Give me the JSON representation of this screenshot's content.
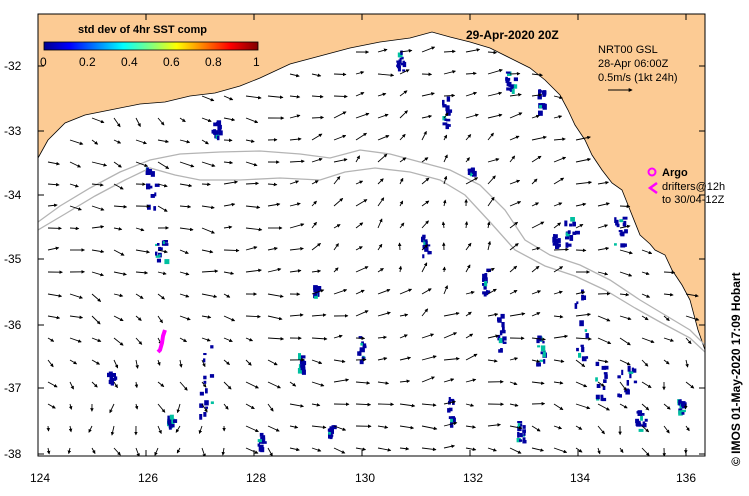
{
  "map": {
    "title_date": "29-Apr-2020 20Z",
    "colorbar": {
      "title": "std dev of 4hr SST comp",
      "ticks": [
        "0",
        "0.2",
        "0.4",
        "0.6",
        "0.8",
        "1"
      ]
    },
    "current_info": {
      "line1": "NRT00 GSL",
      "line2": "28-Apr 06:00Z",
      "line3": "0.5m/s (1kt 24h)"
    },
    "legend": {
      "argo_label": "Argo",
      "drifters_line1": "drifters@12h",
      "drifters_line2": "to 30/04-12Z"
    },
    "credit": "© IMOS 01-May-2020 17:09 Hobart",
    "lon_ticks": [
      "124",
      "126",
      "128",
      "130",
      "132",
      "134",
      "136"
    ],
    "lat_ticks": [
      "-32",
      "-33",
      "-34",
      "-35",
      "-36",
      "-37",
      "-38"
    ],
    "colors": {
      "land": "#FCCB94",
      "ocean": "#FFFFFF",
      "bathymetry": "#B4B4B4",
      "drifter": "#FF00FF",
      "data_patch": "#0000A0"
    }
  }
}
